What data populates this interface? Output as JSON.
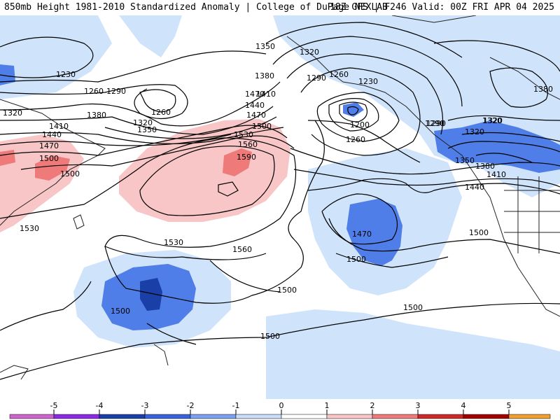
{
  "header": {
    "title_left": "850mb Height 1981-2010 Standardized Anomaly | College of DuPage NEXLAB",
    "title_right": "18Z GFS | F246 Valid: 00Z FRI APR 04 2025"
  },
  "map": {
    "contour_labels": [
      "1230",
      "1260",
      "1290",
      "1320",
      "1320",
      "1350",
      "1380",
      "1350",
      "1320",
      "1290",
      "1260",
      "1230",
      "1200",
      "1260",
      "1410",
      "1440",
      "1470",
      "1500",
      "1530",
      "1560",
      "1590",
      "1440",
      "1470",
      "1500",
      "1530",
      "1560",
      "1530",
      "1500",
      "1500",
      "1500",
      "1500",
      "1470",
      "1500",
      "1410",
      "1380",
      "1350",
      "1320",
      "1290",
      "1320",
      "1380",
      "1410",
      "1440",
      "1470",
      "1500",
      "1380",
      "1290",
      "1260",
      "1320",
      "1500"
    ]
  },
  "legend": {
    "ticks": [
      "-5",
      "-4",
      "-3",
      "-2",
      "-1",
      "0",
      "1",
      "2",
      "3",
      "4",
      "5"
    ],
    "colors": [
      "#cc66cc",
      "#8a2be2",
      "#1a3fa6",
      "#3a62d8",
      "#7ea0f0",
      "#c9ddfb",
      "#ffffff",
      "#f8c6c6",
      "#ee7a7a",
      "#cc2a2a",
      "#a00000",
      "#f0a030"
    ]
  }
}
